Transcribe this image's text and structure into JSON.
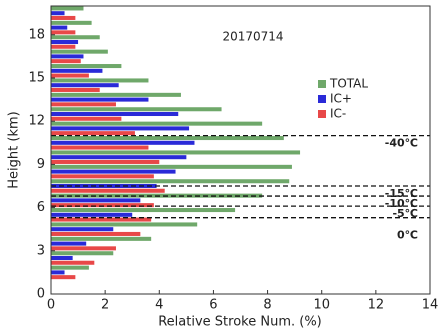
{
  "chart_data": {
    "type": "hbar",
    "annotation": "20170714",
    "x_label": "Relative Stroke Num. (%)",
    "y_label": "Height (km)",
    "y": [
      1.5,
      2.5,
      3.5,
      4.5,
      5.5,
      6.5,
      7.5,
      8.5,
      9.5,
      10.5,
      11.5,
      12.5,
      13.5,
      14.5,
      15.5,
      16.5,
      17.5,
      18.5,
      19.5
    ],
    "series": [
      {
        "name": "TOTAL",
        "color": "#6fa86a",
        "values": [
          1.4,
          2.3,
          3.7,
          5.4,
          6.8,
          7.8,
          8.8,
          8.9,
          9.2,
          8.6,
          7.8,
          6.3,
          4.8,
          3.6,
          2.6,
          2.1,
          1.8,
          1.5,
          1.2
        ]
      },
      {
        "name": "IC+",
        "color": "#2a2ad8",
        "values": [
          0.5,
          0.8,
          1.3,
          2.3,
          3.0,
          3.3,
          3.9,
          4.6,
          5.0,
          5.3,
          5.1,
          4.7,
          3.6,
          2.5,
          1.9,
          1.2,
          1.0,
          0.6,
          0.5
        ]
      },
      {
        "name": "IC-",
        "color": "#e84848",
        "values": [
          0.9,
          1.6,
          2.4,
          3.3,
          3.7,
          3.8,
          4.2,
          3.8,
          4.0,
          3.6,
          3.1,
          2.6,
          2.4,
          1.8,
          1.4,
          1.1,
          0.9,
          0.9,
          0.9
        ]
      }
    ],
    "isotherms": [
      {
        "label": "-40℃",
        "value": 11.0
      },
      {
        "label": "-15℃",
        "value": 7.5
      },
      {
        "label": "-10℃",
        "value": 6.8
      },
      {
        "label": "-5℃",
        "value": 6.1
      },
      {
        "label": "0℃",
        "value": 5.3
      }
    ],
    "xlim": [
      0,
      14
    ],
    "xticks": [
      0,
      2,
      4,
      6,
      8,
      10,
      12,
      14
    ],
    "ylim": [
      0,
      20
    ],
    "yticks": [
      0,
      3,
      6,
      9,
      12,
      15,
      18
    ]
  }
}
